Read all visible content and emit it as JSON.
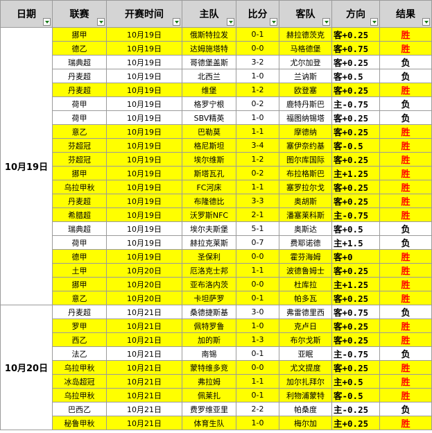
{
  "table": {
    "columns": [
      "日期",
      "联赛",
      "开赛时间",
      "主队",
      "比分",
      "客队",
      "方向",
      "结果"
    ],
    "highlight_color": "#ffff00",
    "win_color": "#ff0000",
    "groups": [
      {
        "date": "10月19日",
        "rows": [
          {
            "cells": [
              "挪甲",
              "10月19日",
              "俄斯特拉发",
              "0-1",
              "赫拉德茨克",
              "客+0.25",
              "胜"
            ],
            "highlight": true
          },
          {
            "cells": [
              "德乙",
              "10月19日",
              "达姆施塔特",
              "0-0",
              "马格德堡",
              "客+0.75",
              "胜"
            ],
            "highlight": true
          },
          {
            "cells": [
              "瑞典超",
              "10月19日",
              "哥德堡盖斯",
              "3-2",
              "尤尔加登",
              "客+0.25",
              "负"
            ],
            "highlight": false
          },
          {
            "cells": [
              "丹麦超",
              "10月19日",
              "北西兰",
              "1-0",
              "兰讷斯",
              "客+0.5",
              "负"
            ],
            "highlight": false
          },
          {
            "cells": [
              "丹麦超",
              "10月19日",
              "维堡",
              "1-2",
              "欧登塞",
              "客+0.25",
              "胜"
            ],
            "highlight": true
          },
          {
            "cells": [
              "荷甲",
              "10月19日",
              "格罗宁根",
              "0-2",
              "鹿特丹斯巴",
              "主-0.75",
              "负"
            ],
            "highlight": false
          },
          {
            "cells": [
              "荷甲",
              "10月19日",
              "SBV精英",
              "1-0",
              "福图纳锡塔",
              "客+0.25",
              "负"
            ],
            "highlight": false
          },
          {
            "cells": [
              "意乙",
              "10月19日",
              "巴勒莫",
              "1-1",
              "摩德纳",
              "客+0.25",
              "胜"
            ],
            "highlight": true
          },
          {
            "cells": [
              "芬超冠",
              "10月19日",
              "格尼斯坦",
              "3-4",
              "塞伊奈约基",
              "客-0.5",
              "胜"
            ],
            "highlight": true
          },
          {
            "cells": [
              "芬超冠",
              "10月19日",
              "埃尔维斯",
              "1-2",
              "图尔库国际",
              "客+0.25",
              "胜"
            ],
            "highlight": true
          },
          {
            "cells": [
              "挪甲",
              "10月19日",
              "斯塔瓦孔",
              "0-2",
              "布拉格斯巴",
              "主+1.25",
              "胜"
            ],
            "highlight": true
          },
          {
            "cells": [
              "乌拉甲秋",
              "10月19日",
              "FC河床",
              "1-1",
              "塞罗拉尔戈",
              "客+0.25",
              "胜"
            ],
            "highlight": true
          },
          {
            "cells": [
              "丹麦超",
              "10月19日",
              "布隆德比",
              "3-3",
              "奥胡斯",
              "客+0.25",
              "胜"
            ],
            "highlight": true
          },
          {
            "cells": [
              "希腊超",
              "10月19日",
              "沃罗斯NFC",
              "2-1",
              "潘塞莱科斯",
              "主-0.75",
              "胜"
            ],
            "highlight": true
          },
          {
            "cells": [
              "瑞典超",
              "10月19日",
              "埃尔夫斯堡",
              "5-1",
              "奥斯达",
              "客+0.5",
              "负"
            ],
            "highlight": false
          },
          {
            "cells": [
              "荷甲",
              "10月19日",
              "赫拉克莱斯",
              "0-7",
              "费耶诺德",
              "主+1.5",
              "负"
            ],
            "highlight": false
          },
          {
            "cells": [
              "德甲",
              "10月19日",
              "圣保利",
              "0-0",
              "霍芬海姆",
              "客+0",
              "胜"
            ],
            "highlight": true
          },
          {
            "cells": [
              "土甲",
              "10月20日",
              "厄洛克士邦",
              "1-1",
              "波德鲁姆士",
              "客+0.25",
              "胜"
            ],
            "highlight": true
          },
          {
            "cells": [
              "挪甲",
              "10月20日",
              "亚布洛内茨",
              "0-0",
              "杜库拉",
              "主+1.25",
              "胜"
            ],
            "highlight": true
          },
          {
            "cells": [
              "意乙",
              "10月20日",
              "卡坦萨罗",
              "0-1",
              "帕多瓦",
              "客+0.25",
              "胜"
            ],
            "highlight": true
          }
        ]
      },
      {
        "date": "10月20日",
        "rows": [
          {
            "cells": [
              "丹麦超",
              "10月21日",
              "桑德捷斯基",
              "3-0",
              "弗雷德里西",
              "客+0.75",
              "负"
            ],
            "highlight": false
          },
          {
            "cells": [
              "罗甲",
              "10月21日",
              "佩特罗鲁",
              "1-0",
              "克卢日",
              "客+0.25",
              "胜"
            ],
            "highlight": true
          },
          {
            "cells": [
              "西乙",
              "10月21日",
              "加的斯",
              "1-3",
              "布尔戈斯",
              "客+0.25",
              "胜"
            ],
            "highlight": true
          },
          {
            "cells": [
              "法乙",
              "10月21日",
              "南锡",
              "0-1",
              "亚眠",
              "主-0.75",
              "负"
            ],
            "highlight": false
          },
          {
            "cells": [
              "乌拉甲秋",
              "10月21日",
              "蒙特维多竞",
              "0-0",
              "尤文提度",
              "客+0.25",
              "胜"
            ],
            "highlight": true
          },
          {
            "cells": [
              "冰岛超冠",
              "10月21日",
              "弗拉姆",
              "1-1",
              "加尔扎拜尔",
              "主+0.5",
              "胜"
            ],
            "highlight": true
          },
          {
            "cells": [
              "乌拉甲秋",
              "10月21日",
              "佩莱扎",
              "0-1",
              "利物浦蒙特",
              "客-0.5",
              "胜"
            ],
            "highlight": true
          },
          {
            "cells": [
              "巴西乙",
              "10月21日",
              "费罗维亚里",
              "2-2",
              "帕桑度",
              "主-0.25",
              "负"
            ],
            "highlight": false
          },
          {
            "cells": [
              "秘鲁甲秋",
              "10月21日",
              "体育生队",
              "1-0",
              "梅尔加",
              "主+0.25",
              "胜"
            ],
            "highlight": true
          }
        ]
      }
    ]
  }
}
